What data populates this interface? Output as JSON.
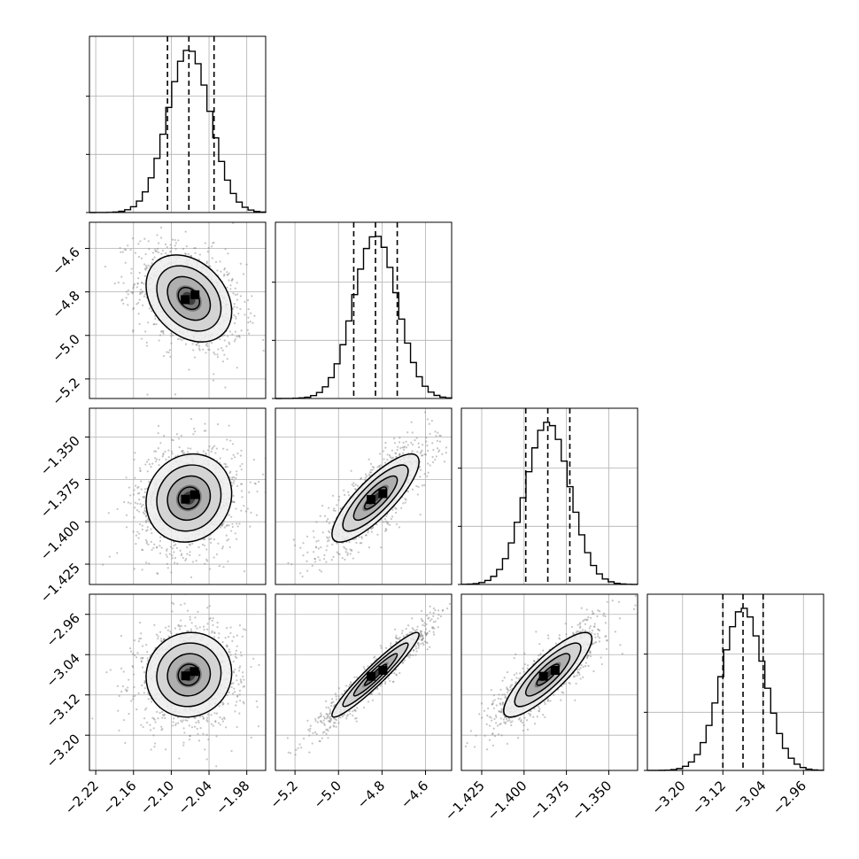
{
  "chart_data": {
    "type": "scatter",
    "layout": "corner",
    "grid": true,
    "colors": {
      "hist": "#000000",
      "points": "#7f7f7f",
      "contour": "#000000",
      "grid": "#b0b0b0"
    },
    "params": [
      {
        "range": [
          -2.23,
          -1.95
        ],
        "ticks": [
          -2.22,
          -2.16,
          -2.1,
          -2.04,
          -1.98
        ],
        "tick_labels": [
          "−2.22",
          "−2.16",
          "−2.10",
          "−2.04",
          "−1.98"
        ],
        "mean": -2.072,
        "sd": 0.034,
        "quantiles": [
          -2.106,
          -2.072,
          -2.032
        ],
        "hist_max": 1.0
      },
      {
        "range": [
          -5.29,
          -4.48
        ],
        "ticks": [
          -5.2,
          -5.0,
          -4.8,
          -4.6
        ],
        "tick_labels": [
          "−5.2",
          "−5.0",
          "−4.8",
          "−4.6"
        ],
        "mean": -4.83,
        "sd": 0.1,
        "quantiles": [
          -4.93,
          -4.83,
          -4.73
        ],
        "hist_max": 1.0
      },
      {
        "range": [
          -1.437,
          -1.333
        ],
        "ticks": [
          -1.425,
          -1.4,
          -1.375,
          -1.35
        ],
        "tick_labels": [
          "−1.425",
          "−1.400",
          "−1.375",
          "−1.350"
        ],
        "mean": -1.386,
        "sd": 0.013,
        "quantiles": [
          -1.399,
          -1.386,
          -1.373
        ],
        "hist_max": 1.0
      },
      {
        "range": [
          -3.27,
          -2.92
        ],
        "ticks": [
          -3.2,
          -3.12,
          -3.04,
          -2.96
        ],
        "tick_labels": [
          "−3.20",
          "−3.12",
          "−3.04",
          "−2.96"
        ],
        "mean": -3.08,
        "sd": 0.042,
        "quantiles": [
          -3.12,
          -3.08,
          -3.04
        ],
        "hist_max": 1.0
      }
    ],
    "pairs": [
      {
        "row": 1,
        "col": 0,
        "rho": -0.3
      },
      {
        "row": 2,
        "col": 0,
        "rho": 0.1
      },
      {
        "row": 2,
        "col": 1,
        "rho": 0.82
      },
      {
        "row": 3,
        "col": 0,
        "rho": 0.05
      },
      {
        "row": 3,
        "col": 1,
        "rho": 0.95
      },
      {
        "row": 3,
        "col": 2,
        "rho": 0.85
      }
    ],
    "contour_sigmas": [
      0.5,
      1.0,
      1.5,
      2.0
    ],
    "n_points": 1100,
    "hist_bins": 30
  }
}
